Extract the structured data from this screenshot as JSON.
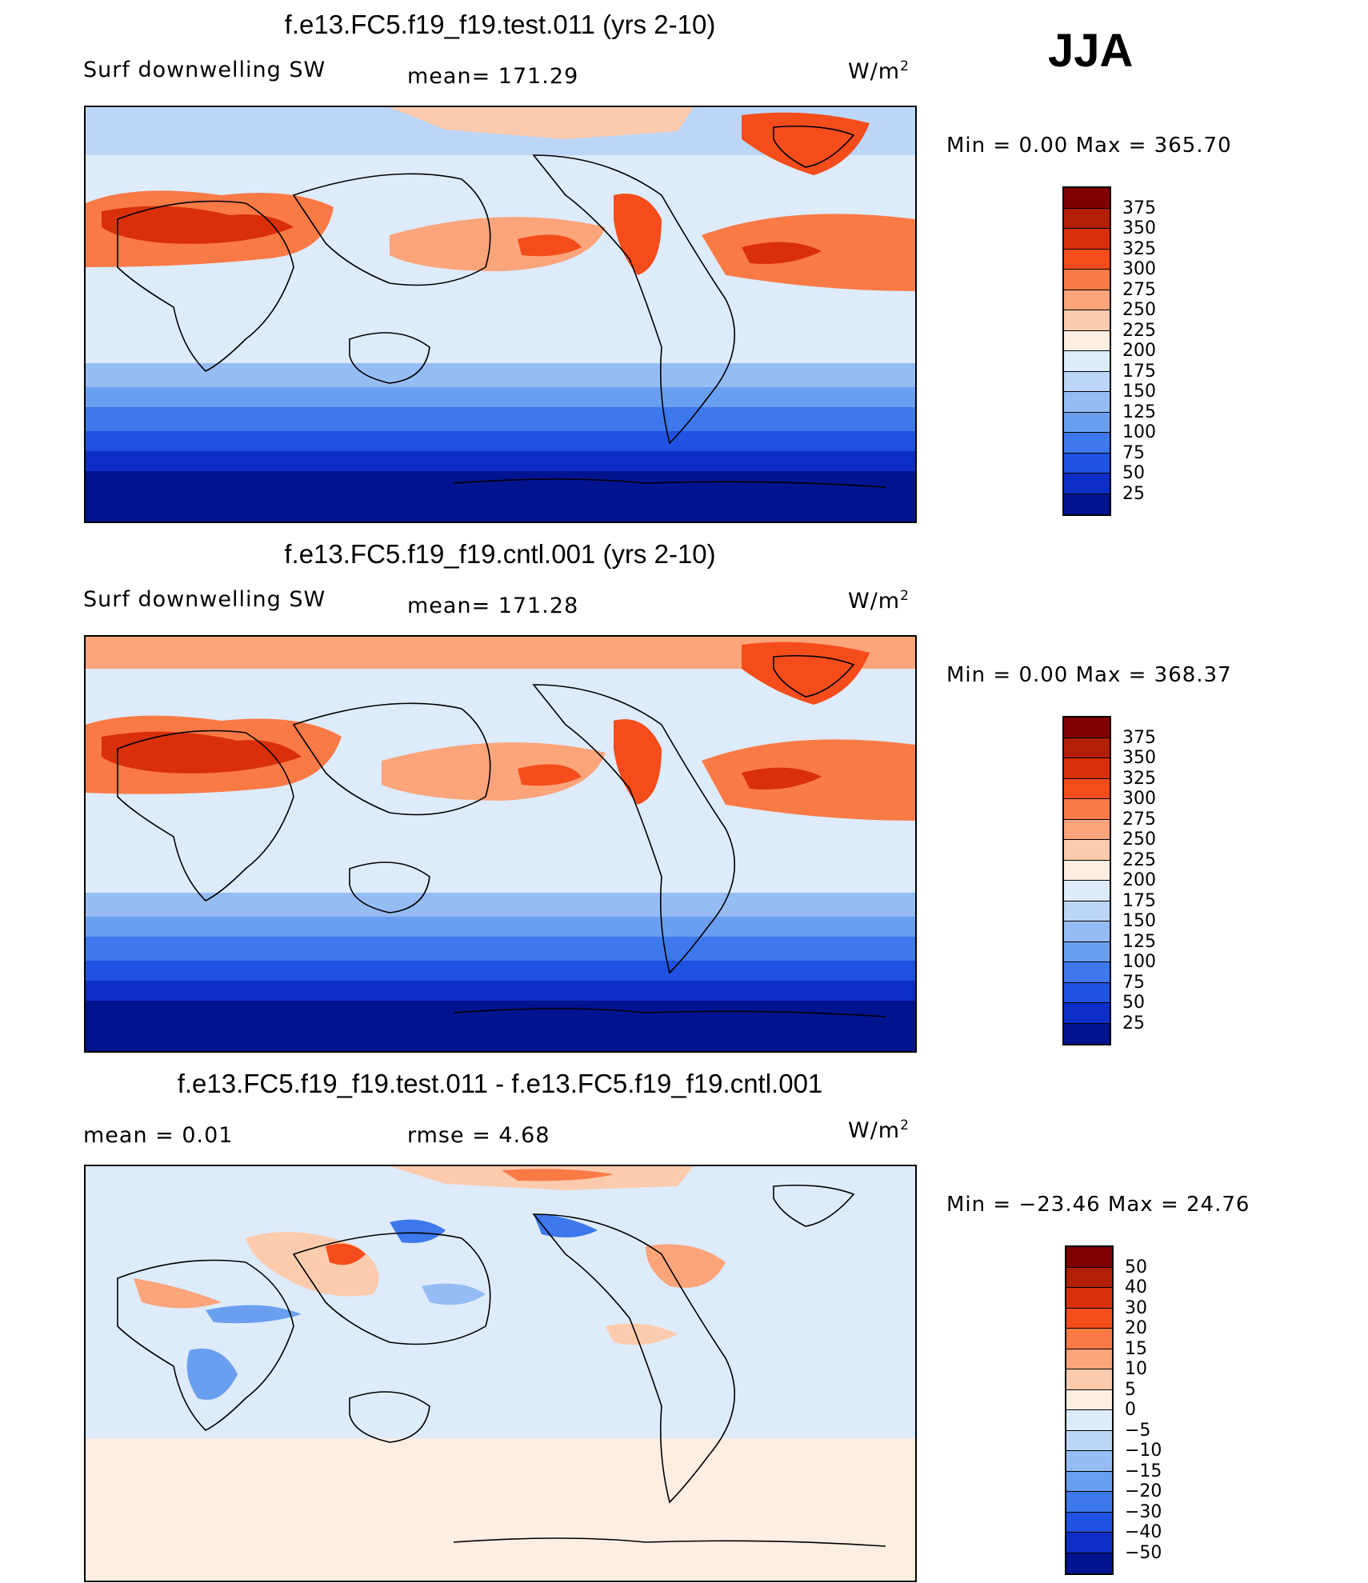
{
  "season": "JJA",
  "panels": [
    {
      "title": "f.e13.FC5.f19_f19.test.011 (yrs 2-10)",
      "left_text": "Surf  downwelling  SW",
      "mid_text": "mean=  171.29",
      "units_main": "W/m",
      "units_sup": "2",
      "minmax": "Min  =      0.00  Max  =  365.70",
      "colorbar": {
        "labels": [
          "375",
          "350",
          "325",
          "300",
          "275",
          "250",
          "225",
          "200",
          "175",
          "150",
          "125",
          "100",
          "75",
          "50",
          "25"
        ],
        "colors": [
          "#7f0000",
          "#b21f05",
          "#d9300a",
          "#f44d1b",
          "#fa7a46",
          "#fca47a",
          "#fccbad",
          "#fdeee2",
          "#ddebfb",
          "#bcd6f8",
          "#96bcf4",
          "#6a9ff0",
          "#3d78ec",
          "#1f52e2",
          "#0c2ec6",
          "#02138f"
        ]
      }
    },
    {
      "title": "f.e13.FC5.f19_f19.cntl.001 (yrs 2-10)",
      "left_text": "Surf  downwelling  SW",
      "mid_text": "mean=  171.28",
      "units_main": "W/m",
      "units_sup": "2",
      "minmax": "Min  =      0.00  Max  =  368.37",
      "colorbar": {
        "labels": [
          "375",
          "350",
          "325",
          "300",
          "275",
          "250",
          "225",
          "200",
          "175",
          "150",
          "125",
          "100",
          "75",
          "50",
          "25"
        ],
        "colors": [
          "#7f0000",
          "#b21f05",
          "#d9300a",
          "#f44d1b",
          "#fa7a46",
          "#fca47a",
          "#fccbad",
          "#fdeee2",
          "#ddebfb",
          "#bcd6f8",
          "#96bcf4",
          "#6a9ff0",
          "#3d78ec",
          "#1f52e2",
          "#0c2ec6",
          "#02138f"
        ]
      }
    },
    {
      "title": "f.e13.FC5.f19_f19.test.011 - f.e13.FC5.f19_f19.cntl.001",
      "left_text": "mean  =      0.01",
      "mid_text": "rmse  =      4.68",
      "units_main": "W/m",
      "units_sup": "2",
      "minmax": "Min  = −23.46  Max  =    24.76",
      "colorbar": {
        "labels": [
          "50",
          "40",
          "30",
          "20",
          "15",
          "10",
          "5",
          "0",
          "−5",
          "−10",
          "−15",
          "−20",
          "−30",
          "−40",
          "−50"
        ],
        "colors": [
          "#7f0000",
          "#b21f05",
          "#d9300a",
          "#f44d1b",
          "#fa7a46",
          "#fca47a",
          "#fccbad",
          "#fdeee2",
          "#ddebfb",
          "#bcd6f8",
          "#96bcf4",
          "#6a9ff0",
          "#3d78ec",
          "#1f52e2",
          "#0c2ec6",
          "#02138f"
        ]
      }
    }
  ]
}
